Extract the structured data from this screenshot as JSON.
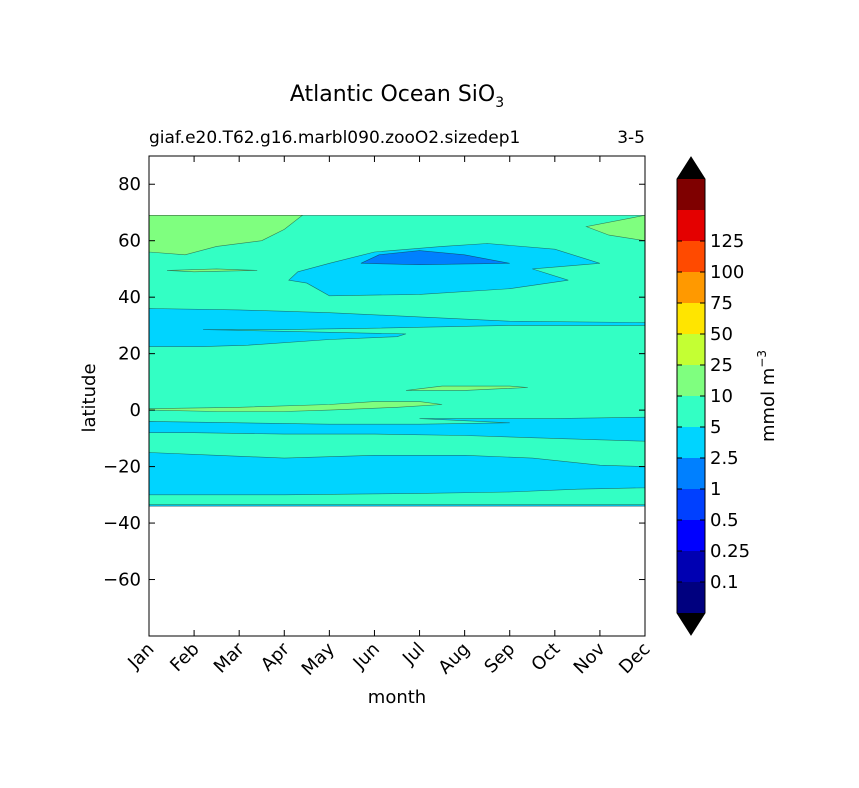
{
  "chart_data": {
    "type": "contourf",
    "title": "Atlantic Ocean SiO",
    "title_subscript": "3",
    "subtitle_left": "giaf.e20.T62.g16.marbl090.zooO2.sizedep1",
    "subtitle_right": "3-5",
    "xlabel": "month",
    "ylabel": "latitude",
    "x_categories": [
      "Jan",
      "Feb",
      "Mar",
      "Apr",
      "May",
      "Jun",
      "Jul",
      "Aug",
      "Sep",
      "Oct",
      "Nov",
      "Dec"
    ],
    "xlim": [
      0,
      11
    ],
    "ylim": [
      -80,
      90
    ],
    "y_ticks": [
      80,
      60,
      40,
      20,
      0,
      -20,
      -40,
      -60
    ],
    "y_tick_labels": [
      "80",
      "60",
      "40",
      "20",
      "0",
      "−20",
      "−40",
      "−60"
    ],
    "data_lat_range": [
      -34,
      69
    ],
    "colorbar": {
      "label": "mmol m",
      "label_exponent": "−3",
      "levels": [
        0.1,
        0.25,
        0.5,
        1,
        2.5,
        5,
        10,
        25,
        50,
        75,
        100,
        125
      ],
      "level_labels": [
        "0.1",
        "0.25",
        "0.5",
        "1",
        "2.5",
        "5",
        "10",
        "25",
        "50",
        "75",
        "100",
        "125"
      ],
      "colors": [
        "#00007f",
        "#0000b2",
        "#0000ff",
        "#0040ff",
        "#0080ff",
        "#00d4ff",
        "#33ffc4",
        "#7fff7f",
        "#c4ff33",
        "#ffe500",
        "#ff9900",
        "#ff4a00",
        "#e40000",
        "#7f0000"
      ],
      "extend": "both",
      "under_color": "#000000",
      "over_color": "#000000"
    },
    "regions": [
      {
        "name": "bg",
        "level": 6,
        "points": [
          [
            0,
            69
          ],
          [
            11,
            69
          ],
          [
            11,
            -34
          ],
          [
            0,
            -34
          ]
        ]
      },
      {
        "name": "band-south-1",
        "level": 5,
        "points": [
          [
            0,
            -30
          ],
          [
            3,
            -30
          ],
          [
            6,
            -29.5
          ],
          [
            8,
            -29
          ],
          [
            9.5,
            -28
          ],
          [
            11,
            -27.5
          ],
          [
            11,
            -20
          ],
          [
            10,
            -19.5
          ],
          [
            8.5,
            -17
          ],
          [
            7,
            -16
          ],
          [
            5,
            -16
          ],
          [
            3,
            -17
          ],
          [
            1.5,
            -16
          ],
          [
            0,
            -15
          ]
        ]
      },
      {
        "name": "band-south-edge",
        "level": 5,
        "points": [
          [
            0,
            -34
          ],
          [
            11,
            -34
          ],
          [
            11,
            -33.5
          ],
          [
            0,
            -33.5
          ]
        ]
      },
      {
        "name": "band-eq-south",
        "level": 5,
        "points": [
          [
            0,
            -4
          ],
          [
            2,
            -4.5
          ],
          [
            4,
            -5
          ],
          [
            6,
            -5
          ],
          [
            8,
            -4.5
          ],
          [
            6,
            -3
          ],
          [
            9,
            -3
          ],
          [
            11,
            -2.5
          ],
          [
            11,
            -11
          ],
          [
            9,
            -10
          ],
          [
            7,
            -9
          ],
          [
            5,
            -8.5
          ],
          [
            3,
            -8.5
          ],
          [
            1,
            -8
          ],
          [
            0,
            -8
          ]
        ]
      },
      {
        "name": "band-north-25",
        "level": 5,
        "points": [
          [
            0,
            36
          ],
          [
            2,
            35.5
          ],
          [
            4,
            34.5
          ],
          [
            6,
            33
          ],
          [
            8,
            31.5
          ],
          [
            11,
            31
          ],
          [
            11,
            30
          ],
          [
            8,
            30
          ],
          [
            5,
            29
          ],
          [
            3,
            28.5
          ],
          [
            1.2,
            28.5
          ],
          [
            5.7,
            27
          ],
          [
            5.5,
            26
          ],
          [
            4,
            25
          ],
          [
            2.2,
            23
          ],
          [
            1.2,
            22.5
          ],
          [
            0,
            22.5
          ]
        ]
      },
      {
        "name": "band-north-45",
        "level": 5,
        "points": [
          [
            3.3,
            49
          ],
          [
            4,
            52
          ],
          [
            5,
            56
          ],
          [
            6.5,
            58
          ],
          [
            7.5,
            59
          ],
          [
            9,
            57
          ],
          [
            10,
            52
          ],
          [
            8.5,
            50
          ],
          [
            9.3,
            46
          ],
          [
            8,
            43
          ],
          [
            6,
            41
          ],
          [
            4,
            40.5
          ],
          [
            3.5,
            45
          ],
          [
            3.1,
            46
          ]
        ]
      },
      {
        "name": "blob-north-60",
        "level": 4,
        "points": [
          [
            4.7,
            52
          ],
          [
            5.1,
            55
          ],
          [
            6,
            56.5
          ],
          [
            7,
            55
          ],
          [
            8,
            52
          ],
          [
            6,
            51.5
          ]
        ]
      },
      {
        "name": "patch-nw-green",
        "level": 7,
        "points": [
          [
            0,
            69
          ],
          [
            3.4,
            69
          ],
          [
            3,
            64
          ],
          [
            2.5,
            60
          ],
          [
            1.5,
            58
          ],
          [
            0.8,
            55
          ],
          [
            0,
            56
          ]
        ]
      },
      {
        "name": "patch-ne-green",
        "level": 7,
        "points": [
          [
            11,
            69
          ],
          [
            11,
            60
          ],
          [
            10.2,
            62
          ],
          [
            9.7,
            65
          ]
        ]
      },
      {
        "name": "strip-eq-green",
        "level": 7,
        "points": [
          [
            0,
            0.5
          ],
          [
            2,
            1
          ],
          [
            4,
            2
          ],
          [
            5,
            3
          ],
          [
            6,
            3
          ],
          [
            6.5,
            2
          ],
          [
            5.5,
            1
          ],
          [
            4,
            0
          ],
          [
            3,
            -0.5
          ],
          [
            1.5,
            -0.5
          ],
          [
            0,
            0
          ]
        ]
      },
      {
        "name": "strip-10n-green",
        "level": 7,
        "points": [
          [
            5.7,
            7
          ],
          [
            6.5,
            8.5
          ],
          [
            8,
            8.5
          ],
          [
            8.4,
            8
          ],
          [
            7,
            7
          ]
        ]
      },
      {
        "name": "strip-50n-green",
        "level": 7,
        "points": [
          [
            0.4,
            49.5
          ],
          [
            1.5,
            50
          ],
          [
            2.4,
            49.5
          ],
          [
            1,
            49
          ]
        ]
      }
    ]
  }
}
